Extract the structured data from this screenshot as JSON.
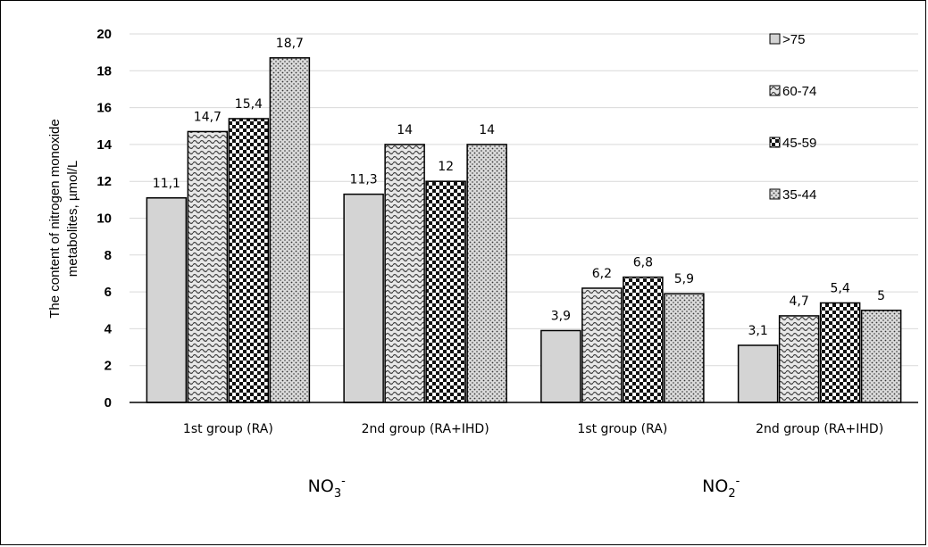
{
  "chart_data": {
    "type": "bar",
    "ylabel_line1": "The content of nitrogen monoxide",
    "ylabel_line2": "metabolites,  µmol/L",
    "ylim": [
      0,
      20
    ],
    "yticks": [
      0,
      2,
      4,
      6,
      8,
      10,
      12,
      14,
      16,
      18,
      20
    ],
    "grid": true,
    "legend_position": "top-right",
    "categories": [
      "1st group (RA)",
      "2nd group (RA+IHD)",
      "1st group (RA)",
      "2nd group (RA+IHD)"
    ],
    "super_groups": [
      {
        "label": "NO",
        "sub": "3",
        "sup": "-",
        "span": [
          0,
          1
        ]
      },
      {
        "label": "NO",
        "sub": "2",
        "sup": "-",
        "span": [
          2,
          3
        ]
      }
    ],
    "series": [
      {
        "name": ">75",
        "values": [
          11.1,
          11.3,
          3.9,
          3.1
        ],
        "labels": [
          "11,1",
          "11,3",
          "3,9",
          "3,1"
        ],
        "pattern": "plain-gray"
      },
      {
        "name": "60-74",
        "values": [
          14.7,
          14,
          6.2,
          4.7
        ],
        "labels": [
          "14,7",
          "14",
          "6,2",
          "4,7"
        ],
        "pattern": "wave"
      },
      {
        "name": "45-59",
        "values": [
          15.4,
          12,
          6.8,
          5.4
        ],
        "labels": [
          "15,4",
          "12",
          "6,8",
          "5,4"
        ],
        "pattern": "checker"
      },
      {
        "name": "35-44",
        "values": [
          18.7,
          14,
          5.9,
          5
        ],
        "labels": [
          "18,7",
          "14",
          "5,9",
          "5"
        ],
        "pattern": "dots"
      }
    ]
  }
}
